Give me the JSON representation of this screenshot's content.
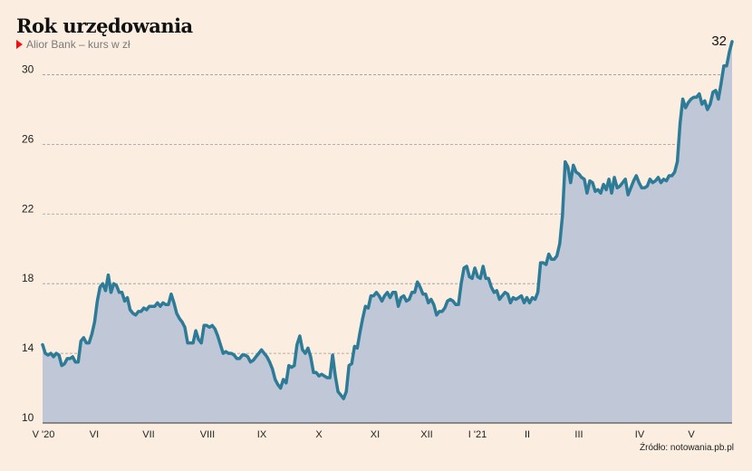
{
  "header": {
    "title": "Rok urzędowania",
    "subtitle": "Alior Bank – kurs w zł"
  },
  "footer": {
    "source": "Źródło: notowania.pb.pl"
  },
  "colors": {
    "background": "#fbeee0",
    "line": "#2e7b97",
    "area": "#c0c8d8",
    "grid": "#9a9a9a",
    "marker": "#e11111"
  },
  "chart_data": {
    "type": "area",
    "title": "Rok urzędowania",
    "subtitle": "Alior Bank – kurs w zł",
    "xlabel": "",
    "ylabel": "",
    "ylim": [
      10,
      32
    ],
    "yticks": [
      10,
      14,
      18,
      22,
      26,
      30
    ],
    "grid": "horizontal dashed",
    "x_labels": [
      "V '20",
      "VI",
      "VII",
      "VIII",
      "IX",
      "X",
      "XI",
      "XII",
      "I '21",
      "II",
      "III",
      "IV",
      "V"
    ],
    "end_label": "32",
    "series": [
      {
        "values": [
          14.5,
          14.0,
          13.9,
          14.0,
          13.8,
          14.0,
          13.9,
          13.3,
          13.4,
          13.7,
          13.7,
          13.8,
          13.5,
          13.5,
          14.7,
          14.9,
          14.6,
          14.6,
          15.1,
          15.8,
          17.0,
          17.8,
          18.0,
          17.6,
          18.5,
          17.5,
          18.0,
          17.9,
          17.5,
          17.5,
          17.0,
          17.2,
          16.5,
          16.3,
          16.2,
          16.4,
          16.4,
          16.6,
          16.5,
          16.7,
          16.7,
          16.7,
          16.9,
          16.7,
          16.9,
          16.8,
          16.8,
          17.4,
          16.9,
          16.3,
          16.0,
          15.8,
          15.5,
          14.6,
          14.6,
          14.6,
          15.3,
          14.8,
          14.6,
          15.6,
          15.6,
          15.5,
          15.6,
          15.4,
          15.0,
          14.5,
          14.0,
          14.1,
          14.0,
          14.0,
          13.9,
          13.7,
          13.7,
          13.9,
          13.9,
          13.8,
          13.5,
          13.6,
          13.8,
          14.0,
          14.2,
          14.0,
          13.8,
          13.5,
          13.1,
          12.5,
          12.2,
          12.0,
          12.5,
          12.3,
          13.3,
          13.2,
          13.3,
          14.5,
          15.0,
          14.2,
          14.0,
          14.3,
          13.8,
          12.9,
          12.9,
          12.7,
          12.8,
          12.7,
          12.6,
          12.6,
          13.9,
          12.7,
          11.8,
          11.6,
          11.4,
          11.8,
          13.3,
          13.4,
          14.4,
          14.3,
          15.2,
          16.0,
          16.7,
          16.6,
          17.3,
          17.3,
          17.5,
          17.3,
          17.0,
          17.3,
          17.5,
          17.2,
          17.5,
          17.5,
          16.7,
          17.2,
          17.3,
          17.0,
          17.1,
          17.5,
          17.5,
          18.1,
          17.8,
          17.4,
          17.4,
          16.9,
          17.1,
          16.8,
          16.2,
          16.4,
          16.4,
          16.6,
          17.0,
          17.1,
          17.0,
          16.8,
          16.8,
          18.0,
          18.9,
          19.0,
          18.4,
          18.3,
          18.9,
          18.4,
          18.3,
          19.0,
          18.3,
          18.3,
          17.8,
          17.5,
          17.6,
          17.1,
          17.3,
          17.5,
          17.4,
          16.9,
          17.2,
          17.1,
          17.2,
          17.3,
          16.9,
          17.2,
          16.9,
          17.2,
          17.1,
          17.5,
          19.2,
          19.2,
          19.1,
          19.7,
          19.4,
          19.4,
          19.6,
          20.3,
          21.9,
          25.0,
          24.7,
          23.8,
          24.8,
          24.4,
          24.3,
          24.1,
          24.0,
          23.2,
          23.9,
          23.8,
          23.3,
          23.4,
          23.2,
          23.7,
          23.4,
          24.0,
          23.2,
          24.1,
          23.5,
          23.6,
          23.8,
          24.0,
          23.1,
          23.5,
          23.9,
          24.2,
          23.8,
          23.5,
          23.5,
          23.6,
          24.0,
          23.8,
          23.9,
          24.1,
          23.8,
          24.0,
          23.9,
          24.2,
          24.2,
          24.4,
          25.0,
          27.2,
          28.6,
          28.1,
          28.4,
          28.6,
          28.7,
          28.7,
          28.9,
          28.3,
          28.5,
          28.0,
          28.3,
          29.0,
          29.1,
          28.6,
          29.5,
          30.5,
          30.5,
          31.3,
          31.9
        ]
      }
    ]
  }
}
